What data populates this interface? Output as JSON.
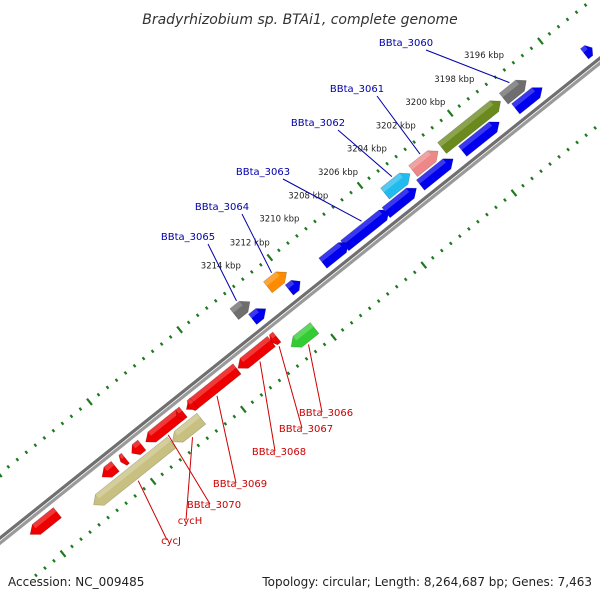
{
  "title": "Bradyrhizobium sp. BTAi1, complete genome",
  "footer": {
    "accession": "Accession: NC_009485",
    "summary": "Topology: circular; Length: 8,264,687 bp; Genes: 7,463"
  },
  "colors": {
    "backbone": "#8c8c8c",
    "tick": "#1f7a1f",
    "forward_label": "#0000aa",
    "reverse_label": "#cc0000"
  },
  "ruler": [
    "3196 kbp",
    "3198 kbp",
    "3200 kbp",
    "3202 kbp",
    "3204 kbp",
    "3206 kbp",
    "3208 kbp",
    "3210 kbp",
    "3212 kbp",
    "3214 kbp"
  ],
  "forward_genes": [
    {
      "id": "g1",
      "label": "BBta_3060",
      "color": "#6e6e6e"
    },
    {
      "id": "g2",
      "label": "",
      "color": "#6b8a1e"
    },
    {
      "id": "g3",
      "label": "BBta_3061",
      "color": "#ee8888"
    },
    {
      "id": "g4",
      "label": "BBta_3062",
      "color": "#22bbee"
    },
    {
      "id": "g5",
      "label": "BBta_3063",
      "color": "#0000ee"
    },
    {
      "id": "g6",
      "label": "BBta_3064",
      "color": "#ff8c00"
    },
    {
      "id": "g7",
      "label": "BBta_3065",
      "color": "#6e6e6e"
    },
    {
      "id": "g8",
      "label": "",
      "color": "#0000ee"
    },
    {
      "id": "g9",
      "label": "",
      "color": "#0000ee"
    },
    {
      "id": "g10",
      "label": "",
      "color": "#0000ee"
    },
    {
      "id": "g11",
      "label": "",
      "color": "#0000ee"
    },
    {
      "id": "g12",
      "label": "",
      "color": "#0000ee"
    },
    {
      "id": "g13",
      "label": "",
      "color": "#0000ee"
    },
    {
      "id": "g14",
      "label": "",
      "color": "#0000ee"
    },
    {
      "id": "g15",
      "label": "",
      "color": "#0000ee"
    }
  ],
  "reverse_genes": [
    {
      "id": "r1",
      "label": "BBta_3066",
      "color": "#33cc33"
    },
    {
      "id": "r2",
      "label": "BBta_3067",
      "color": "#ee0000"
    },
    {
      "id": "r3",
      "label": "BBta_3068",
      "color": "#ee0000"
    },
    {
      "id": "r4",
      "label": "BBta_3069",
      "color": "#ee0000"
    },
    {
      "id": "r5",
      "label": "BBta_3070",
      "color": "#ee0000"
    },
    {
      "id": "r6",
      "label": "cycH",
      "color": "#c8c080"
    },
    {
      "id": "r7",
      "label": "cycJ",
      "color": "#c8c080"
    },
    {
      "id": "r8",
      "label": "",
      "color": "#ee0000"
    },
    {
      "id": "r9",
      "label": "",
      "color": "#ee0000"
    },
    {
      "id": "r10",
      "label": "",
      "color": "#ee0000"
    },
    {
      "id": "r11",
      "label": "",
      "color": "#ee0000"
    },
    {
      "id": "r12",
      "label": "",
      "color": "#ee0000"
    },
    {
      "id": "r13",
      "label": "",
      "color": "#ee0000"
    },
    {
      "id": "r14",
      "label": "",
      "color": "#ee0000"
    }
  ]
}
